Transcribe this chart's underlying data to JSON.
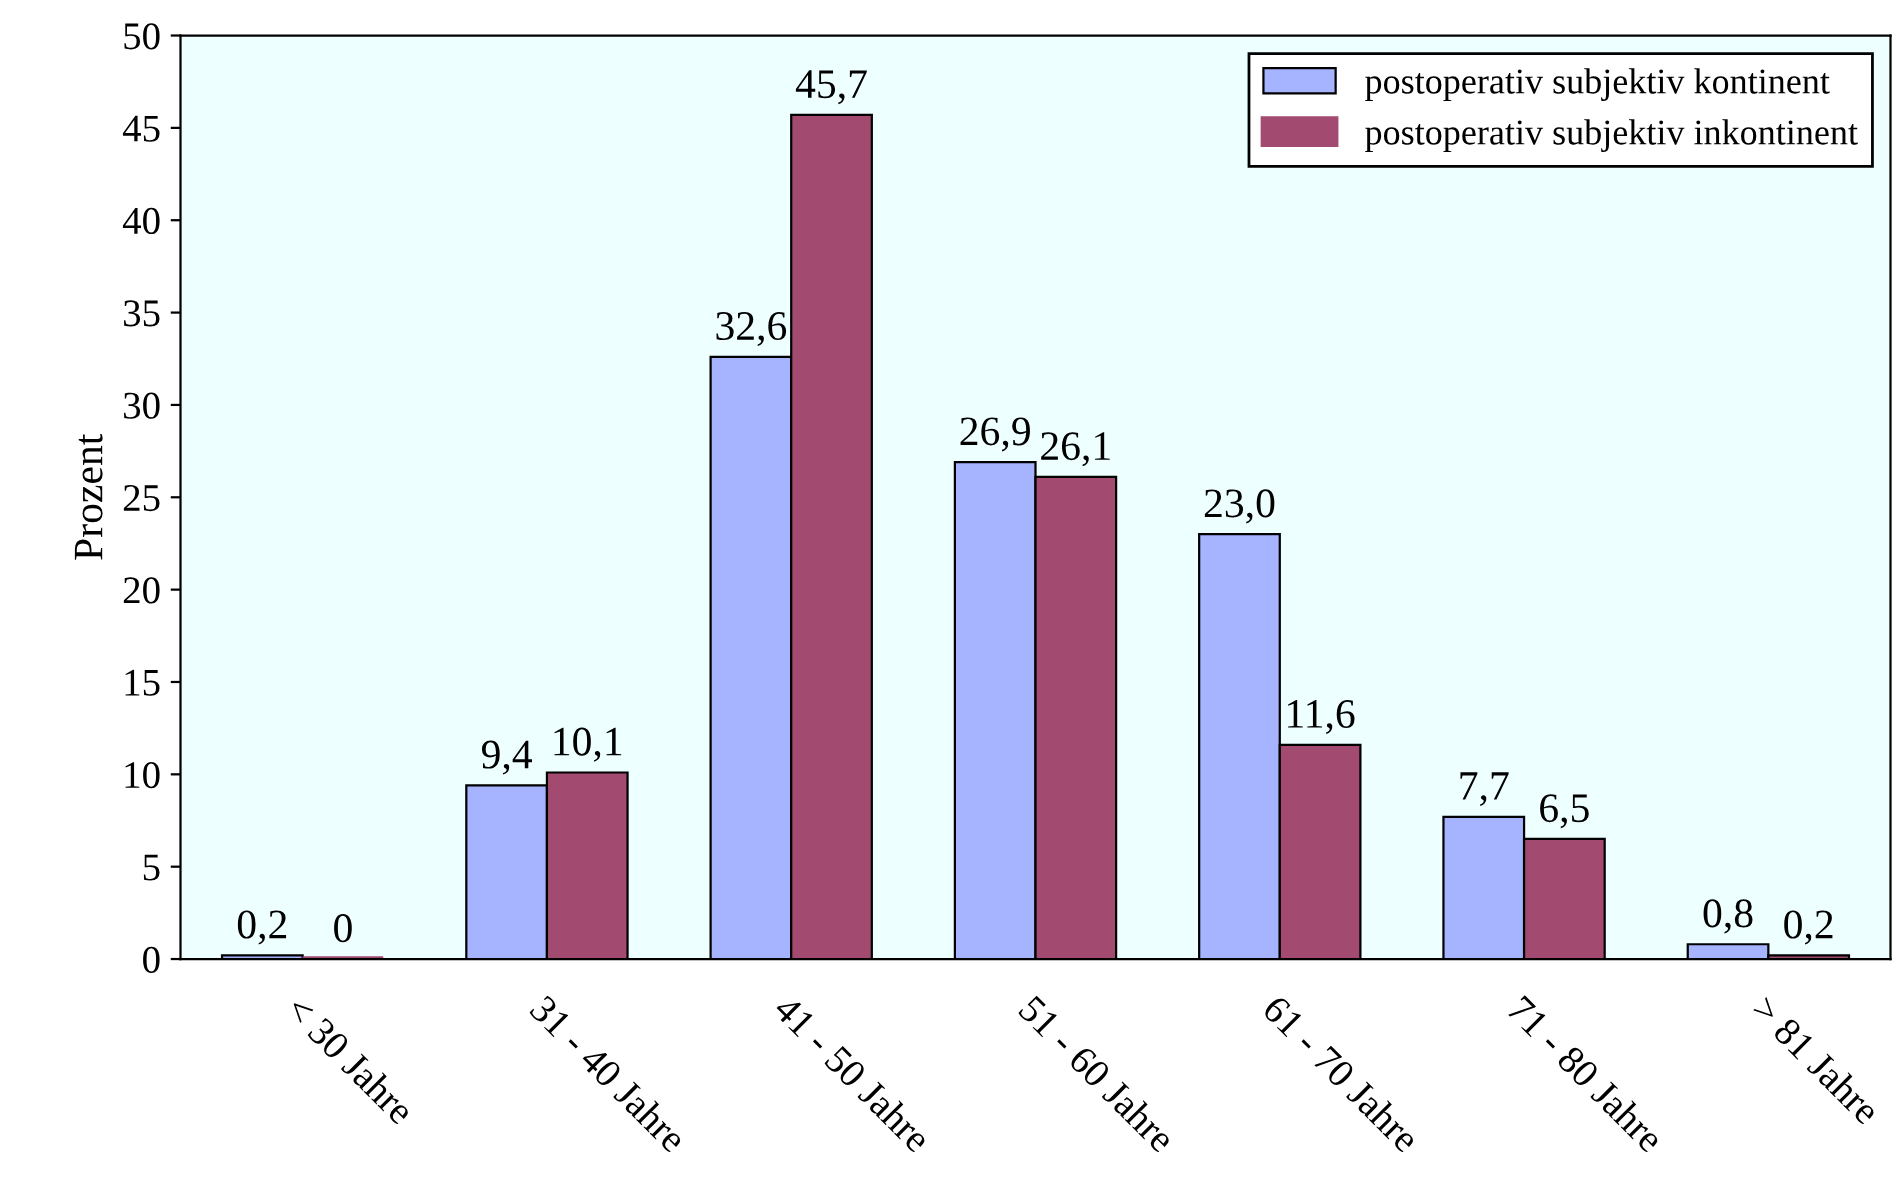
{
  "chart_data": {
    "type": "bar",
    "ylabel": "Prozent",
    "categories": [
      "< 30 Jahre",
      "31 - 40 Jahre",
      "41 - 50 Jahre",
      "51 - 60 Jahre",
      "61 - 70 Jahre",
      "71 - 80 Jahre",
      "> 81 Jahre"
    ],
    "series": [
      {
        "name": "postoperativ subjektiv kontinent",
        "color": "#a6b4ff",
        "values": [
          0.2,
          9.4,
          32.6,
          26.9,
          23.0,
          7.7,
          0.8
        ],
        "value_labels": [
          "0,2",
          "9,4",
          "32,6",
          "26,9",
          "23,0",
          "7,7",
          "0,8"
        ]
      },
      {
        "name": "postoperativ subjektiv inkontinent",
        "color": "#a34a70",
        "values": [
          0,
          10.1,
          45.7,
          26.1,
          11.6,
          6.5,
          0.2
        ],
        "value_labels": [
          "0",
          "10,1",
          "45,7",
          "26,1",
          "11,6",
          "6,5",
          "0,2"
        ]
      }
    ],
    "ylim": [
      0,
      50
    ],
    "yticks": [
      0,
      5,
      10,
      15,
      20,
      25,
      30,
      35,
      40,
      45,
      50
    ],
    "grid": false,
    "legend": "top right"
  }
}
